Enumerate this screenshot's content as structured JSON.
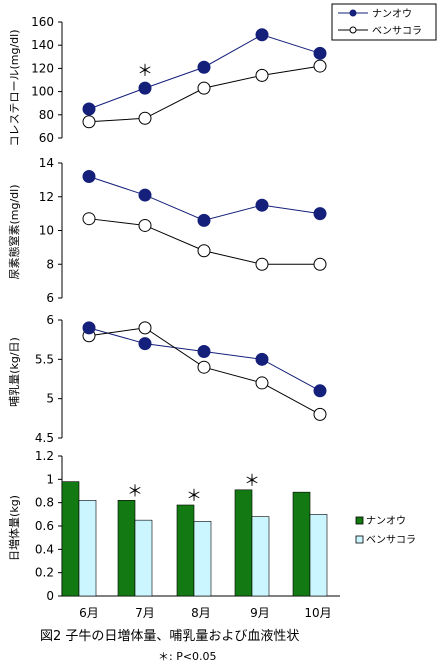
{
  "colors": {
    "nanoh": "#14207a",
    "bensa": "#ffffff",
    "bar_nanoh": "#137a13",
    "bar_bensa": "#ccf6ff",
    "axis": "#000000"
  },
  "months": [
    "6月",
    "7月",
    "8月",
    "9月",
    "10月"
  ],
  "legend_top": {
    "series1": "ナンオウ",
    "series2": "ベンサコラ"
  },
  "legend_bar": {
    "series1": "ナンオウ",
    "series2": "ベンサコラ"
  },
  "caption": "図2  子牛の日増体量、哺乳量および血液性状",
  "note": "＊: P<0.05",
  "chart_data": [
    {
      "type": "line",
      "ylabel": "コレステロール(mg/dl)",
      "ylim": [
        60,
        160
      ],
      "yticks": [
        "60",
        "80",
        "100",
        "120",
        "140",
        "160"
      ],
      "ytick_values": [
        60,
        80,
        100,
        120,
        140,
        160
      ],
      "categories": [
        "6月",
        "7月",
        "8月",
        "9月",
        "10月"
      ],
      "series": [
        {
          "name": "ナンオウ",
          "values": [
            85,
            103,
            121,
            149,
            133
          ]
        },
        {
          "name": "ベンサコラ",
          "values": [
            74,
            77,
            103,
            114,
            122
          ]
        }
      ],
      "significance": [
        "",
        "＊",
        "",
        "",
        ""
      ]
    },
    {
      "type": "line",
      "ylabel": "尿素態窒素(mg/dl)",
      "ylim": [
        6,
        14
      ],
      "yticks": [
        "6",
        "8",
        "10",
        "12",
        "14"
      ],
      "ytick_values": [
        6,
        8,
        10,
        12,
        14
      ],
      "categories": [
        "6月",
        "7月",
        "8月",
        "9月",
        "10月"
      ],
      "series": [
        {
          "name": "ナンオウ",
          "values": [
            13.2,
            12.1,
            10.6,
            11.5,
            11.0
          ]
        },
        {
          "name": "ベンサコラ",
          "values": [
            10.7,
            10.3,
            8.8,
            8.0,
            8.0
          ]
        }
      ],
      "significance": [
        "",
        "",
        "",
        "",
        ""
      ]
    },
    {
      "type": "line",
      "ylabel": "哺乳量(kg/日)",
      "ylim": [
        4.5,
        6
      ],
      "yticks": [
        "4.5",
        "5",
        "5.5",
        "6"
      ],
      "ytick_values": [
        4.5,
        5,
        5.5,
        6
      ],
      "categories": [
        "6月",
        "7月",
        "8月",
        "9月",
        "10月"
      ],
      "series": [
        {
          "name": "ナンオウ",
          "values": [
            5.9,
            5.7,
            5.6,
            5.5,
            5.1
          ]
        },
        {
          "name": "ベンサコラ",
          "values": [
            5.8,
            5.9,
            5.4,
            5.2,
            4.8
          ]
        }
      ],
      "significance": [
        "",
        "",
        "",
        "",
        ""
      ]
    },
    {
      "type": "bar",
      "ylabel": "日増体量(kg)",
      "ylim": [
        0,
        1.2
      ],
      "yticks": [
        "0",
        "0.2",
        "0.4",
        "0.6",
        "0.8",
        "1",
        "1.2"
      ],
      "ytick_values": [
        0,
        0.2,
        0.4,
        0.6,
        0.8,
        1.0,
        1.2
      ],
      "categories": [
        "6月",
        "7月",
        "8月",
        "9月",
        "10月"
      ],
      "series": [
        {
          "name": "ナンオウ",
          "values": [
            0.98,
            0.82,
            0.78,
            0.91,
            0.89
          ]
        },
        {
          "name": "ベンサコラ",
          "values": [
            0.82,
            0.65,
            0.64,
            0.68,
            0.7
          ]
        }
      ],
      "significance": [
        "",
        "＊",
        "＊",
        "＊",
        ""
      ]
    }
  ]
}
